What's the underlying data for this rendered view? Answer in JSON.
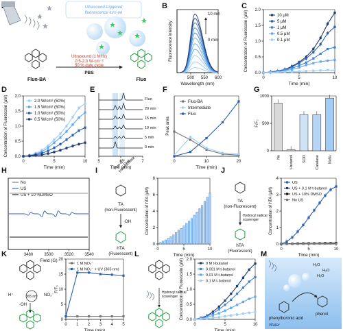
{
  "colors": {
    "dark": "#1f3b73",
    "mid1": "#2a5fb0",
    "mid2": "#3d7fd8",
    "light": "#5fa8ee",
    "pale": "#9fcdf5",
    "gray": "#777777",
    "black": "#111111"
  },
  "panelA": {
    "letter": "A",
    "banner": "Ultrasound-triggered fluorescence turn-on",
    "conditions": [
      "Ultrasound (1 MHz)",
      "0.5-2.0 W·cm⁻²",
      "50 % duty cycle"
    ],
    "buffer": "PBS",
    "reactant": "Fluo-BA",
    "product": "Fluo"
  },
  "chart_data": [
    {
      "panel": "B",
      "type": "line",
      "xlabel": "Wavelength (nm)",
      "ylabel": "Fluorescence intensity",
      "xlim": [
        450,
        600
      ],
      "xticks": [
        500,
        550,
        600
      ],
      "peak_nm": 515,
      "times_min": [
        0,
        1,
        2,
        3,
        4,
        5,
        6,
        7,
        8,
        9,
        10
      ],
      "relative_peak": [
        0.08,
        0.17,
        0.27,
        0.37,
        0.46,
        0.55,
        0.63,
        0.71,
        0.79,
        0.86,
        0.93
      ],
      "annotations": [
        "10 min",
        "0 min"
      ]
    },
    {
      "panel": "C",
      "type": "line",
      "xlabel": "Time (min)",
      "ylabel": "Concentration of Fluorescein (μM)",
      "xlim": [
        0,
        10
      ],
      "ylim": [
        0,
        2.0
      ],
      "xticks": [
        0,
        5,
        10
      ],
      "yticks": [
        0.0,
        0.5,
        1.0,
        1.5,
        2.0
      ],
      "x": [
        0,
        1,
        2,
        3,
        4,
        5,
        6,
        7,
        8,
        9,
        10
      ],
      "series": [
        {
          "name": "10 μM",
          "values": [
            0.0,
            0.02,
            0.05,
            0.1,
            0.2,
            0.33,
            0.5,
            0.75,
            1.1,
            1.55,
            1.9
          ]
        },
        {
          "name": "5 μM",
          "values": [
            0.0,
            0.02,
            0.05,
            0.1,
            0.18,
            0.3,
            0.45,
            0.65,
            0.9,
            1.25,
            1.45
          ]
        },
        {
          "name": "1 μM",
          "values": [
            0.0,
            0.01,
            0.04,
            0.08,
            0.14,
            0.22,
            0.32,
            0.45,
            0.6,
            0.75,
            0.8
          ]
        },
        {
          "name": "0.5 μM",
          "values": [
            0.0,
            0.01,
            0.03,
            0.06,
            0.1,
            0.16,
            0.24,
            0.3,
            0.35,
            0.38,
            0.4
          ]
        },
        {
          "name": "0.1 μM",
          "values": [
            0.0,
            0.0,
            0.01,
            0.02,
            0.03,
            0.04,
            0.05,
            0.06,
            0.07,
            0.08,
            0.08
          ]
        }
      ]
    },
    {
      "panel": "D",
      "type": "line",
      "xlabel": "Time (min)",
      "ylabel": "Concentration of Fluorescein (μM)",
      "xlim": [
        0,
        10
      ],
      "ylim": [
        0,
        2.0
      ],
      "xticks": [
        0,
        5,
        10
      ],
      "yticks": [
        0.0,
        0.5,
        1.0,
        1.5,
        2.0
      ],
      "x": [
        0,
        1,
        2,
        3,
        4,
        5,
        6,
        7,
        8,
        9,
        10
      ],
      "series": [
        {
          "name": "2.0 W/cm² (50%)",
          "values": [
            0.0,
            0.03,
            0.1,
            0.2,
            0.35,
            0.55,
            0.75,
            1.0,
            1.3,
            1.6,
            1.75
          ]
        },
        {
          "name": "1.5 W/cm² (50%)",
          "values": [
            0.0,
            0.02,
            0.07,
            0.15,
            0.28,
            0.45,
            0.62,
            0.82,
            1.05,
            1.28,
            1.45
          ]
        },
        {
          "name": "1.0 W/cm² (50%)",
          "values": [
            0.0,
            0.02,
            0.05,
            0.1,
            0.18,
            0.28,
            0.4,
            0.55,
            0.7,
            0.85,
            0.95
          ]
        },
        {
          "name": "0.5 W/cm² (50%)",
          "values": [
            0.0,
            0.01,
            0.03,
            0.05,
            0.09,
            0.14,
            0.2,
            0.27,
            0.34,
            0.4,
            0.45
          ]
        }
      ]
    },
    {
      "panel": "E",
      "type": "line",
      "xlabel": "Time (min)",
      "xlim": [
        5,
        7
      ],
      "xticks": [
        5,
        6,
        7
      ],
      "traces": [
        "Fluo",
        "20 min",
        "15 min",
        "10 min",
        "5 min",
        "0 min"
      ],
      "peak_labels": [
        "Fluo-BA",
        "Intermediate",
        "Fluo"
      ]
    },
    {
      "panel": "F",
      "type": "line",
      "xlabel": "Time (min)",
      "ylabel": "Peak area",
      "xlim": [
        0,
        20
      ],
      "xticks": [
        0,
        10,
        20
      ],
      "x": [
        0,
        5,
        10,
        15,
        20
      ],
      "series": [
        {
          "name": "Fluo-BA",
          "values": [
            0.45,
            0.3,
            0.12,
            0.04,
            0.02
          ]
        },
        {
          "name": "Intermediate",
          "values": [
            0.02,
            0.35,
            0.15,
            0.06,
            0.04
          ]
        },
        {
          "name": "Fluo",
          "values": [
            0.0,
            0.08,
            0.33,
            0.62,
            1.0
          ]
        }
      ]
    },
    {
      "panel": "G",
      "type": "bar",
      "ylabel": "F/F₀",
      "ylim": [
        0,
        1000
      ],
      "yticks": [
        0,
        500,
        1000
      ],
      "categories": [
        "No",
        "t-butanol",
        "SOD",
        "Catalase",
        "NaN₃"
      ],
      "values": [
        870,
        20,
        660,
        660,
        960
      ]
    },
    {
      "panel": "H",
      "type": "line",
      "xlabel": "Field (G)",
      "xlim": [
        3460,
        3540
      ],
      "xticks": [
        3480,
        3500,
        3520,
        3540
      ],
      "legend": [
        "No",
        "US",
        "US + 10 %DMSO"
      ]
    },
    {
      "panel": "I",
      "type": "bar",
      "xlabel": "Time (min)",
      "ylabel": "Concentration of hTA (μM)",
      "xlim": [
        0,
        10
      ],
      "ylim": [
        0,
        8
      ],
      "xticks": [
        0,
        5,
        10
      ],
      "yticks": [
        0,
        2,
        4,
        6,
        8
      ],
      "x": [
        0.5,
        1,
        1.5,
        2,
        2.5,
        3,
        3.5,
        4,
        4.5,
        5,
        5.5,
        6,
        6.5,
        7,
        7.5,
        8,
        8.5,
        9,
        9.5,
        10
      ],
      "values": [
        0.2,
        0.35,
        0.5,
        0.7,
        0.9,
        1.1,
        1.4,
        1.7,
        1.9,
        2.2,
        2.5,
        2.8,
        3.1,
        3.5,
        3.9,
        4.3,
        4.7,
        5.2,
        5.7,
        6.2
      ],
      "scheme": {
        "top_label": "TA",
        "top_sub": "(non-Fluorescent)",
        "arrow": "·OH",
        "bottom_label": "hTA",
        "bottom_sub": "(Fluorescent)"
      }
    },
    {
      "panel": "J",
      "type": "line",
      "xlabel": "Time (min)",
      "ylabel": "Concentration of hTA (μM)",
      "xlim": [
        0,
        10
      ],
      "ylim": [
        0,
        4
      ],
      "xticks": [
        0,
        5,
        10
      ],
      "yticks": [
        0,
        1,
        2,
        3,
        4
      ],
      "x": [
        0,
        1,
        2,
        3,
        4,
        5,
        6,
        7,
        8,
        9,
        10
      ],
      "series": [
        {
          "name": "US",
          "values": [
            0.0,
            0.15,
            0.4,
            0.75,
            1.15,
            1.6,
            2.05,
            2.5,
            2.95,
            3.3,
            3.5
          ]
        },
        {
          "name": "US + 0.1 M t-butanol",
          "values": [
            0.0,
            0.01,
            0.02,
            0.02,
            0.03,
            0.03,
            0.03,
            0.04,
            0.04,
            0.05,
            0.05
          ]
        },
        {
          "name": "US + 10% DMSO",
          "values": [
            0.0,
            0.01,
            0.02,
            0.03,
            0.03,
            0.04,
            0.04,
            0.04,
            0.05,
            0.05,
            0.06
          ]
        },
        {
          "name": "No US",
          "values": [
            0.0,
            0.0,
            0.01,
            0.01,
            0.01,
            0.02,
            0.02,
            0.02,
            0.02,
            0.03,
            0.03
          ]
        }
      ],
      "scheme": {
        "top_label": "TA",
        "top_sub": "(non-Fluorescent)",
        "arrow": "Hydroxyl radical scavenger",
        "bottom_label": "hTA",
        "bottom_sub": "(Fluorescent)"
      }
    },
    {
      "panel": "K",
      "type": "line",
      "xlabel": "Time (min)",
      "ylabel": "F/F₀",
      "xlim": [
        0,
        5
      ],
      "ylim": [
        0,
        20
      ],
      "xticks": [
        0,
        1,
        2,
        3,
        4,
        5
      ],
      "yticks": [
        0,
        5,
        10,
        15,
        20
      ],
      "x": [
        0,
        1,
        2,
        3,
        4,
        5
      ],
      "series": [
        {
          "name": "1 M NO₃⁻",
          "values": [
            1.0,
            1.0,
            1.0,
            1.0,
            1.0,
            1.0
          ]
        },
        {
          "name": "1 M NO₃⁻ + UV (365 nm)",
          "values": [
            1.0,
            15.5,
            15.5,
            15.0,
            14.8,
            14.5
          ]
        }
      ],
      "scheme": {
        "left": "H⁺",
        "right": "NO₃⁻",
        "mid": "365 nm",
        "bottom": "·OH"
      }
    },
    {
      "panel": "L",
      "type": "line",
      "xlabel": "Time (min)",
      "ylabel": "Concentration of Fluorescein (μM)",
      "xlim": [
        0,
        10
      ],
      "ylim": [
        0,
        2.0
      ],
      "xticks": [
        0,
        5,
        10
      ],
      "yticks": [
        0.0,
        0.5,
        1.0,
        1.5,
        2.0
      ],
      "x": [
        0,
        1,
        2,
        3,
        4,
        5,
        6,
        7,
        8,
        9,
        10
      ],
      "series": [
        {
          "name": "0 M t-butanol",
          "values": [
            0.0,
            0.05,
            0.12,
            0.25,
            0.42,
            0.62,
            0.85,
            1.1,
            1.38,
            1.65,
            1.85
          ]
        },
        {
          "name": "0.001 M t-butanol",
          "values": [
            0.0,
            0.04,
            0.1,
            0.2,
            0.33,
            0.48,
            0.65,
            0.85,
            1.05,
            1.25,
            1.4
          ]
        },
        {
          "name": "0.01 M t-butanol",
          "values": [
            0.0,
            0.03,
            0.07,
            0.13,
            0.2,
            0.29,
            0.38,
            0.48,
            0.58,
            0.68,
            0.75
          ]
        },
        {
          "name": "0.1 M t-butanol",
          "values": [
            0.0,
            0.01,
            0.03,
            0.05,
            0.07,
            0.1,
            0.13,
            0.16,
            0.19,
            0.22,
            0.25
          ]
        }
      ],
      "scheme": {
        "arrow": "Hydroxyl radical scavenger"
      }
    },
    {
      "panel": "M",
      "type": "diagram",
      "labels": [
        "phenylboronic acid",
        "phenol",
        "Water",
        "H₂O",
        "H₂O",
        "H₂O"
      ]
    }
  ]
}
